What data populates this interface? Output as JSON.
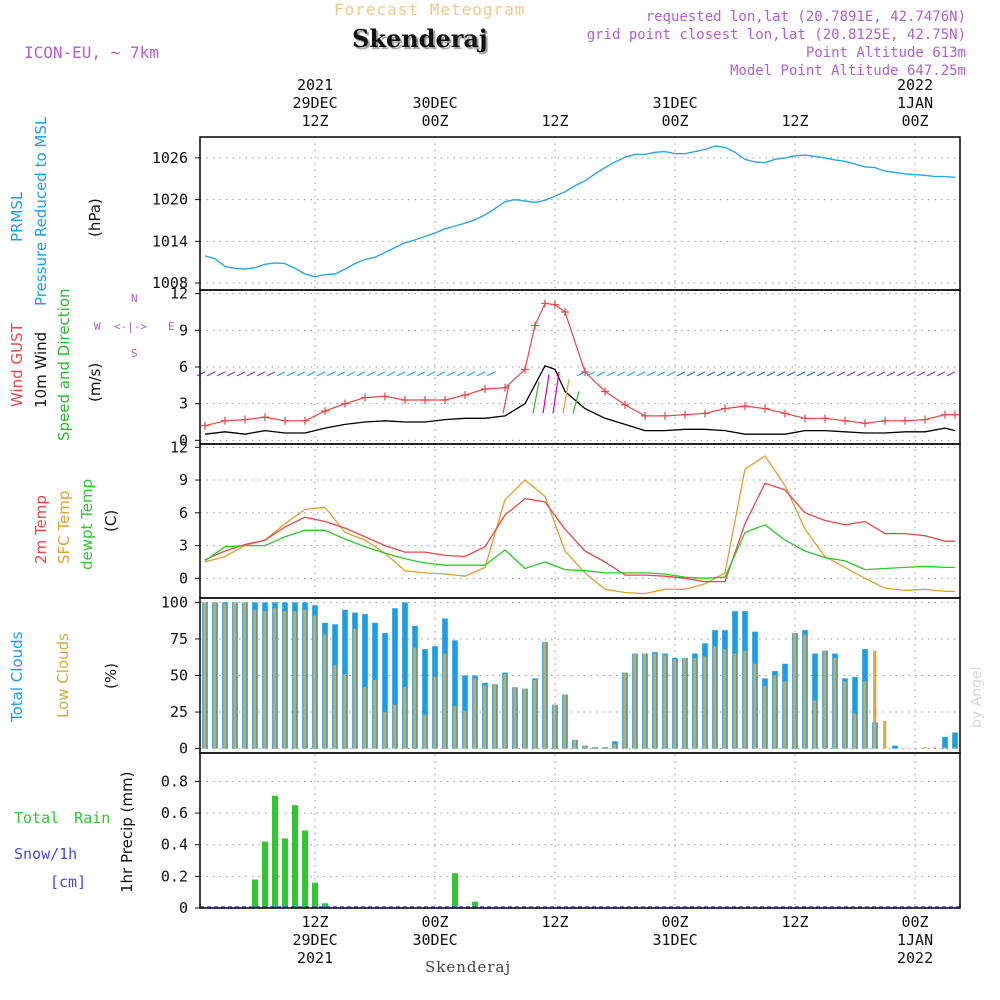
{
  "header": {
    "forecast_title": "Forecast Meteogram",
    "location": "Skenderaj",
    "model": "ICON-EU, ~ 7km",
    "requested": "requested lon,lat (20.7891E, 42.7476N)",
    "gridpoint": "grid point closest lon,lat (20.8125E, 42.75N)",
    "point_alt": "Point Altitude 613m",
    "model_alt": "Model Point Altitude 647.25m",
    "footer_location": "Skenderaj",
    "credit": "by Angel"
  },
  "colors": {
    "pressure": "#2aa6e6",
    "gust": "#e84848",
    "wind": "#000000",
    "winddir": "#2fb82f",
    "temp2m": "#e84848",
    "sfc": "#e0a030",
    "dewpt": "#2fc82f",
    "total_cloud": "#1a9ee8",
    "low_cloud": "#d8a842",
    "rain": "#2fc82f",
    "snow": "#4848e0",
    "label_purple": "#b060d0"
  },
  "top_ticks": [
    {
      "x": 3,
      "line1": "2021",
      "line2": "29DEC",
      "line3": "12Z"
    },
    {
      "x": 15,
      "line1": "",
      "line2": "30DEC",
      "line3": "00Z"
    },
    {
      "x": 27,
      "line1": "",
      "line2": "",
      "line3": "12Z"
    },
    {
      "x": 39,
      "line1": "",
      "line2": "31DEC",
      "line3": "00Z"
    },
    {
      "x": 51,
      "line1": "",
      "line2": "",
      "line3": "12Z"
    },
    {
      "x": 63,
      "line1": "2022",
      "line2": "1JAN",
      "line3": "00Z"
    }
  ],
  "bottom_ticks": [
    {
      "x": 3,
      "line1": "12Z",
      "line2": "29DEC",
      "line3": "2021"
    },
    {
      "x": 15,
      "line1": "00Z",
      "line2": "30DEC",
      "line3": ""
    },
    {
      "x": 27,
      "line1": "12Z",
      "line2": "",
      "line3": ""
    },
    {
      "x": 39,
      "line1": "00Z",
      "line2": "31DEC",
      "line3": ""
    },
    {
      "x": 51,
      "line1": "12Z",
      "line2": "",
      "line3": ""
    },
    {
      "x": 63,
      "line1": "00Z",
      "line2": "1JAN",
      "line3": "2022"
    }
  ],
  "chart_data": [
    {
      "type": "line",
      "panel": "pressure",
      "unit": "(hPa)",
      "labels": [
        "PRMSL",
        "Pressure Reduced to MSL"
      ],
      "ylim": [
        1007,
        1029
      ],
      "yticks": [
        1008,
        1014,
        1020,
        1026
      ],
      "xlim": [
        -8.5,
        67.5
      ],
      "series": [
        {
          "name": "PRMSL",
          "color": "#2aa6e6",
          "x": [
            -8,
            -7,
            -6,
            -5,
            -4,
            -3,
            -2,
            -1,
            0,
            1,
            2,
            3,
            4,
            5,
            6,
            7,
            8,
            9,
            10,
            11,
            12,
            13,
            14,
            15,
            16,
            17,
            18,
            19,
            20,
            21,
            22,
            23,
            24,
            25,
            26,
            27,
            28,
            29,
            30,
            31,
            32,
            33,
            34,
            35,
            36,
            37,
            38,
            39,
            40,
            41,
            42,
            43,
            44,
            45,
            46,
            47,
            48,
            49,
            50,
            51,
            52,
            53,
            54,
            55,
            56,
            57,
            58,
            59,
            60,
            61,
            62,
            63,
            64,
            65,
            66,
            67
          ],
          "y": [
            1011.9,
            1011.5,
            1010.4,
            1010.1,
            1010.0,
            1010.2,
            1010.7,
            1010.9,
            1010.8,
            1010.1,
            1009.3,
            1008.9,
            1009.2,
            1009.3,
            1010.0,
            1010.8,
            1011.4,
            1011.7,
            1012.4,
            1013.1,
            1013.8,
            1014.2,
            1014.7,
            1015.2,
            1015.8,
            1016.2,
            1016.6,
            1017.1,
            1017.8,
            1018.7,
            1019.7,
            1020.0,
            1019.8,
            1019.6,
            1019.9,
            1020.5,
            1021.1,
            1022.0,
            1022.7,
            1023.7,
            1024.6,
            1025.4,
            1026.1,
            1026.5,
            1026.5,
            1026.8,
            1026.9,
            1026.6,
            1026.6,
            1026.9,
            1027.2,
            1027.7,
            1027.5,
            1026.8,
            1025.8,
            1025.4,
            1025.3,
            1025.8,
            1026.0,
            1026.3,
            1026.4,
            1026.2,
            1026.0,
            1025.7,
            1025.5,
            1025.1,
            1024.7,
            1024.6,
            1024.1,
            1023.9,
            1023.7,
            1023.6,
            1023.5,
            1023.3,
            1023.3,
            1023.2
          ]
        }
      ]
    },
    {
      "type": "line",
      "panel": "wind",
      "unit": "(m/s)",
      "labels": [
        "Wind GUST",
        "10m Wind",
        "Speed and Direction"
      ],
      "compass": {
        "n": "N",
        "s": "S",
        "w": "W",
        "e": "E"
      },
      "ylim": [
        -0.3,
        12.3
      ],
      "yticks": [
        0,
        3,
        6,
        9,
        12
      ],
      "xlim": [
        -8.5,
        67.5
      ],
      "series": [
        {
          "name": "Wind GUST",
          "color": "#e84848",
          "x": [
            -8,
            -6,
            -4,
            -2,
            0,
            2,
            4,
            6,
            8,
            10,
            12,
            14,
            16,
            18,
            20,
            22,
            24,
            25,
            26,
            27,
            28,
            30,
            32,
            34,
            36,
            38,
            40,
            42,
            44,
            46,
            48,
            50,
            52,
            54,
            56,
            58,
            60,
            62,
            64,
            66,
            67
          ],
          "y": [
            1.2,
            1.6,
            1.7,
            1.9,
            1.6,
            1.6,
            2.4,
            3.0,
            3.5,
            3.6,
            3.3,
            3.3,
            3.3,
            3.7,
            4.2,
            4.3,
            5.8,
            9.4,
            11.2,
            11.1,
            10.5,
            5.6,
            4.0,
            2.9,
            2.0,
            2.0,
            2.1,
            2.2,
            2.6,
            2.8,
            2.6,
            2.2,
            1.8,
            1.8,
            1.6,
            1.4,
            1.6,
            1.6,
            1.7,
            2.1,
            2.1
          ]
        },
        {
          "name": "10m Wind",
          "color": "#000000",
          "x": [
            -8,
            -6,
            -4,
            -2,
            0,
            2,
            4,
            6,
            8,
            10,
            12,
            14,
            16,
            18,
            20,
            22,
            24,
            26,
            27,
            28,
            30,
            32,
            34,
            36,
            38,
            40,
            42,
            44,
            46,
            48,
            50,
            52,
            54,
            56,
            58,
            60,
            62,
            64,
            66,
            67
          ],
          "y": [
            0.5,
            0.7,
            0.5,
            0.8,
            0.6,
            0.6,
            1.0,
            1.3,
            1.5,
            1.6,
            1.5,
            1.5,
            1.7,
            1.8,
            1.8,
            2.0,
            3.0,
            6.1,
            5.8,
            4.0,
            2.6,
            1.8,
            1.3,
            0.8,
            0.8,
            0.9,
            0.9,
            0.8,
            0.5,
            0.5,
            0.5,
            0.8,
            0.8,
            0.7,
            0.6,
            0.6,
            0.7,
            0.7,
            1.0,
            0.8
          ]
        }
      ]
    },
    {
      "type": "line",
      "panel": "temperature",
      "unit": "(C)",
      "labels": [
        "2m Temp",
        "SFC Temp",
        "dewpt Temp"
      ],
      "ylim": [
        -1.8,
        12.3
      ],
      "yticks": [
        0,
        3,
        6,
        9,
        12
      ],
      "xlim": [
        -8.5,
        67.5
      ],
      "series": [
        {
          "name": "2m Temp",
          "color": "#e84848",
          "x": [
            -8,
            -6,
            -4,
            -2,
            0,
            2,
            4,
            6,
            8,
            10,
            12,
            14,
            16,
            18,
            20,
            22,
            24,
            26,
            28,
            30,
            32,
            34,
            36,
            38,
            40,
            42,
            44,
            46,
            48,
            50,
            52,
            54,
            56,
            58,
            60,
            62,
            64,
            66,
            67
          ],
          "y": [
            1.7,
            2.5,
            3.1,
            3.5,
            4.7,
            5.6,
            5.2,
            4.6,
            3.8,
            3.0,
            2.4,
            2.4,
            2.1,
            2.0,
            2.9,
            5.8,
            7.3,
            7.0,
            4.5,
            2.5,
            1.5,
            0.3,
            0.3,
            0.2,
            0.0,
            -0.3,
            -0.3,
            5.0,
            8.7,
            8.1,
            6.0,
            5.3,
            4.9,
            5.2,
            4.1,
            4.1,
            3.9,
            3.4,
            3.4
          ]
        },
        {
          "name": "SFC Temp",
          "color": "#e0a030",
          "x": [
            -8,
            -6,
            -4,
            -2,
            0,
            2,
            4,
            6,
            8,
            10,
            12,
            14,
            16,
            18,
            20,
            22,
            24,
            26,
            28,
            30,
            32,
            34,
            36,
            38,
            40,
            42,
            44,
            46,
            48,
            50,
            52,
            54,
            56,
            58,
            60,
            62,
            64,
            66,
            67
          ],
          "y": [
            1.5,
            2.0,
            3.0,
            3.5,
            5.0,
            6.3,
            6.5,
            4.2,
            3.5,
            2.3,
            0.7,
            0.5,
            0.4,
            0.2,
            1.0,
            7.2,
            9.0,
            7.5,
            2.5,
            0.5,
            -1.0,
            -1.3,
            -1.4,
            -1.0,
            -1.0,
            -0.5,
            0.5,
            10.0,
            11.2,
            8.5,
            4.5,
            2.0,
            1.0,
            0.0,
            -0.9,
            -1.1,
            -1.0,
            -1.2,
            -1.2
          ]
        },
        {
          "name": "dewpt Temp",
          "color": "#2fc82f",
          "x": [
            -8,
            -6,
            -4,
            -2,
            0,
            2,
            4,
            6,
            8,
            10,
            12,
            14,
            16,
            18,
            20,
            22,
            24,
            26,
            28,
            30,
            32,
            34,
            36,
            38,
            40,
            42,
            44,
            46,
            48,
            50,
            52,
            54,
            56,
            58,
            60,
            62,
            64,
            66,
            67
          ],
          "y": [
            1.6,
            2.9,
            3.0,
            3.0,
            3.8,
            4.4,
            4.4,
            3.6,
            2.9,
            2.3,
            1.8,
            1.4,
            1.2,
            1.2,
            1.2,
            2.6,
            0.9,
            1.5,
            0.8,
            0.7,
            0.5,
            0.5,
            0.5,
            0.4,
            0.1,
            0.0,
            0.1,
            4.2,
            4.9,
            3.5,
            2.5,
            1.9,
            1.6,
            0.8,
            0.9,
            1.0,
            1.1,
            1.0,
            1.0
          ]
        }
      ]
    },
    {
      "type": "bar",
      "panel": "clouds",
      "unit": "(%)",
      "labels": [
        "Total Clouds",
        "Low Clouds"
      ],
      "ylim": [
        -3,
        103
      ],
      "yticks": [
        0,
        25,
        50,
        75,
        100
      ],
      "xlim": [
        -8.5,
        67.5
      ],
      "x": [
        -8,
        -7,
        -6,
        -5,
        -4,
        -3,
        -2,
        -1,
        0,
        1,
        2,
        3,
        4,
        5,
        6,
        7,
        8,
        9,
        10,
        11,
        12,
        13,
        14,
        15,
        16,
        17,
        18,
        19,
        20,
        21,
        22,
        23,
        24,
        25,
        26,
        27,
        28,
        29,
        30,
        31,
        32,
        33,
        34,
        35,
        36,
        37,
        38,
        39,
        40,
        41,
        42,
        43,
        44,
        45,
        46,
        47,
        48,
        49,
        50,
        51,
        52,
        53,
        54,
        55,
        56,
        57,
        58,
        59,
        60,
        61,
        62,
        63,
        64,
        65,
        66,
        67
      ],
      "series": [
        {
          "name": "Total Clouds",
          "color": "#1a9ee8",
          "values": [
            100,
            100,
            100,
            100,
            100,
            100,
            100,
            100,
            100,
            100,
            100,
            98,
            86,
            85,
            95,
            93,
            92,
            86,
            79,
            96,
            100,
            84,
            68,
            70,
            89,
            74,
            50,
            50,
            45,
            44,
            52,
            42,
            41,
            48,
            73,
            30,
            37,
            6,
            2,
            1,
            1,
            5,
            52,
            65,
            65,
            66,
            65,
            62,
            62,
            65,
            72,
            81,
            81,
            94,
            94,
            80,
            48,
            53,
            58,
            79,
            81,
            65,
            67,
            65,
            48,
            49,
            68,
            18,
            0,
            2,
            0,
            0,
            0,
            0,
            8,
            11
          ]
        },
        {
          "name": "Low Clouds",
          "color": "#d8a842",
          "values": [
            100,
            100,
            99,
            100,
            100,
            95,
            94,
            96,
            94,
            94,
            95,
            91,
            78,
            57,
            51,
            82,
            42,
            47,
            25,
            30,
            42,
            69,
            23,
            49,
            65,
            29,
            26,
            48,
            43,
            44,
            51,
            42,
            41,
            47,
            73,
            30,
            37,
            6,
            2,
            1,
            1,
            3,
            52,
            65,
            65,
            65,
            64,
            61,
            62,
            62,
            63,
            70,
            68,
            65,
            67,
            58,
            43,
            50,
            46,
            79,
            78,
            33,
            67,
            62,
            46,
            24,
            46,
            67,
            19,
            0,
            0,
            0,
            1,
            1,
            1,
            1
          ]
        }
      ]
    },
    {
      "type": "bar",
      "panel": "precip",
      "unit": "1hr Precip (mm)",
      "labels": [
        "Total Rain",
        "Snow/1h",
        "[cm]"
      ],
      "ylim": [
        0,
        0.98
      ],
      "yticks": [
        0,
        0.2,
        0.4,
        0.6,
        0.8
      ],
      "ytick_labels": [
        "0",
        "0.2",
        "0.4",
        "0.6",
        "0.8"
      ],
      "xlim": [
        -8.5,
        67.5
      ],
      "x": [
        -3,
        -2,
        -1,
        0,
        1,
        2,
        3,
        4,
        5,
        6,
        7,
        8,
        9,
        10,
        11,
        12,
        13,
        14,
        15,
        16,
        17,
        18,
        19
      ],
      "series": [
        {
          "name": "Total Rain",
          "color": "#2fc82f",
          "values": [
            0.18,
            0.42,
            0.71,
            0.44,
            0.65,
            0.49,
            0.16,
            0.03,
            0,
            0,
            0,
            0,
            0,
            0,
            0,
            0,
            0,
            0,
            0,
            0,
            0.22,
            0,
            0.04
          ]
        }
      ]
    }
  ]
}
